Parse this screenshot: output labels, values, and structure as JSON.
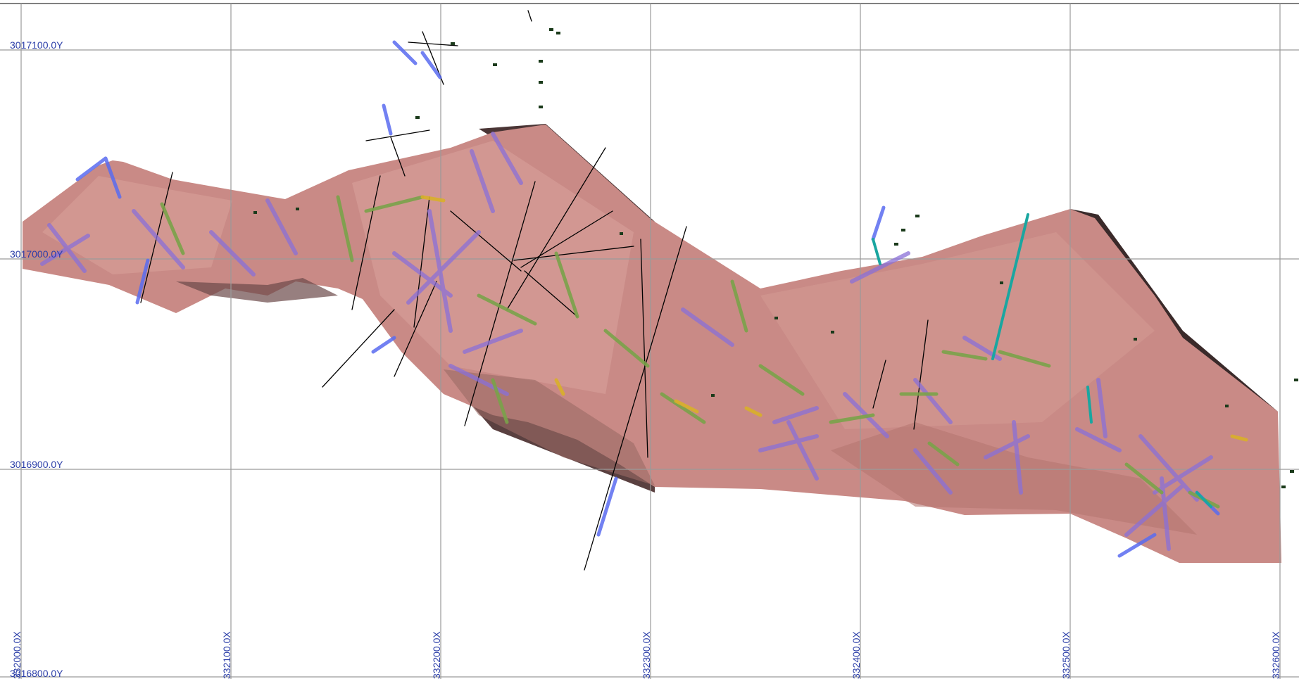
{
  "view": {
    "x_ticks": [
      "332000.0X",
      "332100.0X",
      "332200.0X",
      "332300.0X",
      "332400.0X",
      "332500.0X",
      "332600.0X"
    ],
    "y_ticks": [
      "3017100.0Y",
      "3017000.0Y",
      "3016900.0Y",
      "3016800.0Y"
    ]
  },
  "colors": {
    "background": "#ffffff",
    "grid": "#9a9a9a",
    "label": "#2b3ea8",
    "solid_fill": "#c98a86",
    "solid_shadow": "#3a2a2a",
    "hole_blue": "#5a6cf0",
    "hole_purple": "#8a70d8",
    "hole_green": "#7aa34a",
    "hole_yellow": "#d9b02a",
    "hole_teal": "#1aa6a0",
    "hole_black": "#000000"
  }
}
